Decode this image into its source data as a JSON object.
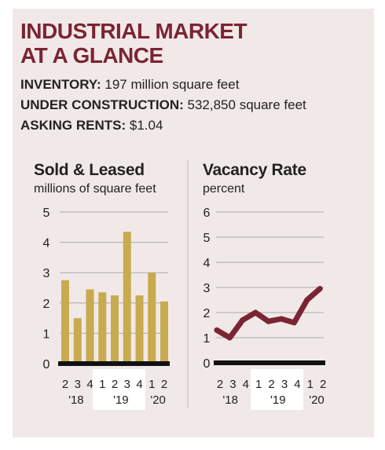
{
  "header": {
    "title_line1": "INDUSTRIAL MARKET",
    "title_line2": "AT A GLANCE"
  },
  "stats": [
    {
      "label": "INVENTORY:",
      "value": "197 million square feet"
    },
    {
      "label": "UNDER CONSTRUCTION:",
      "value": "532,850 square feet"
    },
    {
      "label": "ASKING RENTS:",
      "value": "$1.04"
    }
  ],
  "colors": {
    "title": "#7b2434",
    "bar": "#c8aa4f",
    "line": "#7b2434",
    "highlight": "#ffffff",
    "panel": "#f1e9e7"
  },
  "chart_data": [
    {
      "type": "bar",
      "title": "Sold & Leased",
      "subtitle": "millions of square feet",
      "categories": [
        "2",
        "3",
        "4",
        "1",
        "2",
        "3",
        "4",
        "1",
        "2"
      ],
      "year_labels": [
        "'18",
        "'19",
        "'20"
      ],
      "values": [
        2.75,
        1.5,
        2.45,
        2.35,
        2.25,
        4.35,
        2.25,
        3.0,
        2.05
      ],
      "ylim": [
        0,
        5
      ],
      "yticks": [
        "0",
        "1",
        "2",
        "3",
        "4",
        "5"
      ],
      "grid": true
    },
    {
      "type": "line",
      "title": "Vacancy Rate",
      "subtitle": "percent",
      "categories": [
        "2",
        "3",
        "4",
        "1",
        "2",
        "3",
        "4",
        "1",
        "2"
      ],
      "year_labels": [
        "'18",
        "'19",
        "'20"
      ],
      "values": [
        1.3,
        1.0,
        1.7,
        2.0,
        1.65,
        1.75,
        1.6,
        2.5,
        2.95
      ],
      "ylim": [
        0,
        6
      ],
      "yticks": [
        "0",
        "1",
        "2",
        "3",
        "4",
        "5",
        "6"
      ],
      "grid": true
    }
  ]
}
